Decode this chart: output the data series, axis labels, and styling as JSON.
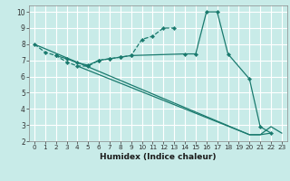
{
  "xlabel": "Humidex (Indice chaleur)",
  "background_color": "#c8ebe8",
  "grid_color": "#ffffff",
  "line_color": "#1a7a6e",
  "xlim": [
    -0.5,
    23.5
  ],
  "ylim": [
    2,
    10.4
  ],
  "xticks": [
    0,
    1,
    2,
    3,
    4,
    5,
    6,
    7,
    8,
    9,
    10,
    11,
    12,
    13,
    14,
    15,
    16,
    17,
    18,
    19,
    20,
    21,
    22,
    23
  ],
  "yticks": [
    2,
    3,
    4,
    5,
    6,
    7,
    8,
    9,
    10
  ],
  "line1_x": [
    0,
    1,
    2,
    3,
    4,
    5,
    6,
    7,
    8,
    9,
    10,
    11,
    12,
    13
  ],
  "line1_y": [
    8.0,
    7.5,
    7.3,
    6.9,
    6.65,
    6.65,
    7.0,
    7.1,
    7.2,
    7.3,
    8.3,
    8.5,
    9.0,
    9.0
  ],
  "line2_x": [
    2,
    3,
    4,
    5,
    6,
    7,
    8,
    9,
    14,
    15,
    16,
    17,
    18,
    20,
    21,
    22
  ],
  "line2_y": [
    7.3,
    7.1,
    6.85,
    6.7,
    7.0,
    7.1,
    7.2,
    7.3,
    7.4,
    7.4,
    10.0,
    10.0,
    7.4,
    5.85,
    2.9,
    2.5
  ],
  "line3_x": [
    0,
    20,
    21,
    22,
    23
  ],
  "line3_y": [
    8.0,
    2.4,
    2.4,
    2.9,
    2.5
  ],
  "line4_x": [
    4,
    20,
    21,
    22
  ],
  "line4_y": [
    6.65,
    2.4,
    2.4,
    2.5
  ]
}
